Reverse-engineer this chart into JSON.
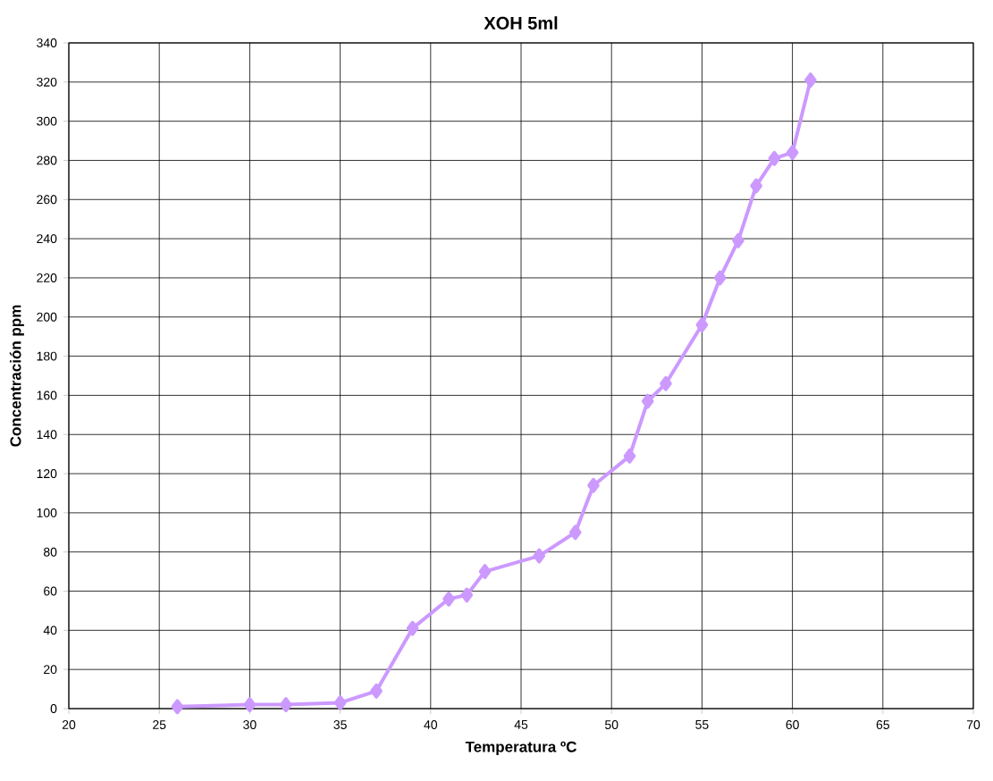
{
  "chart_data": {
    "type": "line",
    "title": "XOH 5ml",
    "xlabel": "Temperatura ºC",
    "ylabel": "Concentración ppm",
    "x": [
      26,
      30,
      32,
      35,
      37,
      39,
      41,
      42,
      43,
      46,
      48,
      49,
      51,
      52,
      53,
      55,
      56,
      57,
      58,
      59,
      60,
      61
    ],
    "series": [
      {
        "color": "#cc99ff",
        "values": [
          1,
          2,
          2,
          3,
          9,
          41,
          56,
          58,
          70,
          78,
          90,
          114,
          129,
          157,
          166,
          196,
          220,
          239,
          267,
          281,
          284,
          321
        ]
      }
    ],
    "xlim": [
      20,
      70
    ],
    "xticks": [
      20,
      25,
      30,
      35,
      40,
      45,
      50,
      55,
      60,
      65,
      70
    ],
    "ylim": [
      0,
      340
    ],
    "yticks": [
      0,
      20,
      40,
      60,
      80,
      100,
      120,
      140,
      160,
      180,
      200,
      220,
      240,
      260,
      280,
      300,
      320,
      340
    ],
    "grid": true,
    "marker": "diamond",
    "line_style": "solid"
  }
}
